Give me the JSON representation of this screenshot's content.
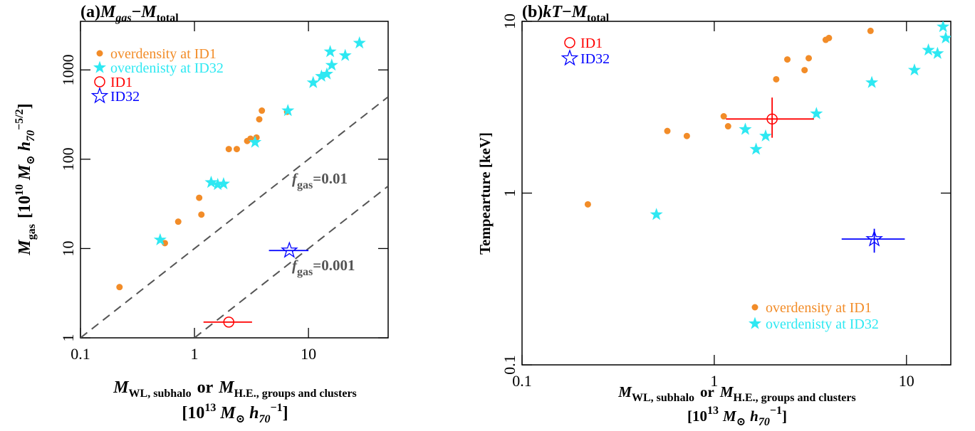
{
  "chart_data": [
    {
      "type": "scatter",
      "log_x": true,
      "log_y": true,
      "title": [
        "(a)",
        "M",
        "gas",
        "−",
        "M",
        "total"
      ],
      "xlabel": [
        "M",
        "WL, subhalo",
        "or",
        "M",
        "H.E., groups and clusters"
      ],
      "xlabel_units": [
        "[10",
        "13",
        "M",
        "⊙",
        "h",
        "70",
        "−1",
        "]"
      ],
      "ylabel": [
        "M",
        "gas",
        "[10",
        "10",
        "M",
        "⊙",
        "h",
        "70",
        "−5/2",
        "]"
      ],
      "xlim": [
        0.1,
        50
      ],
      "ylim": [
        1,
        3500
      ],
      "xticks": [
        0.1,
        1,
        10
      ],
      "yticks": [
        1,
        10,
        100,
        1000
      ],
      "lines": [
        {
          "label": [
            "f",
            "gas",
            "=0.01"
          ],
          "color": "#555555",
          "style": "dashed",
          "x": [
            0.1,
            50
          ],
          "y": [
            1,
            500
          ]
        },
        {
          "label": [
            "f",
            "gas",
            "=0.001"
          ],
          "color": "#555555",
          "style": "dashed",
          "x": [
            1,
            50
          ],
          "y": [
            1,
            50
          ]
        }
      ],
      "series": [
        {
          "name": "overdensity at ID1",
          "color": "#f28c28",
          "marker": "dot",
          "legend": "upper left",
          "x": [
            0.22,
            0.55,
            0.72,
            1.1,
            1.15,
            2.0,
            2.35,
            2.9,
            3.1,
            3.5,
            3.7,
            3.9,
            6.5
          ],
          "y": [
            3.7,
            11.5,
            20,
            37,
            24,
            130,
            130,
            160,
            170,
            175,
            280,
            350,
            340
          ]
        },
        {
          "name": "overdenisty at ID32",
          "color": "#2ee8f2",
          "marker": "star",
          "legend": "upper left",
          "x": [
            0.5,
            1.4,
            1.6,
            1.8,
            3.4,
            6.6,
            11,
            13,
            14.5,
            15.5,
            16,
            21,
            28
          ],
          "y": [
            12.5,
            55,
            52,
            53,
            155,
            350,
            720,
            850,
            900,
            1600,
            1130,
            1450,
            2000
          ]
        },
        {
          "name": "ID1",
          "color": "#ff0000",
          "marker": "open-circle",
          "legend": "upper left",
          "x": [
            2.0
          ],
          "y": [
            1.5
          ],
          "x_lo": [
            1.2
          ],
          "x_hi": [
            3.2
          ]
        },
        {
          "name": "ID32",
          "color": "#0000ff",
          "marker": "open-star",
          "legend": "upper left",
          "x": [
            6.8
          ],
          "y": [
            9.5
          ],
          "x_lo": [
            4.5
          ],
          "x_hi": [
            10
          ]
        }
      ]
    },
    {
      "type": "scatter",
      "log_x": true,
      "log_y": true,
      "title": [
        "(b)",
        "kT",
        "−",
        "M",
        "total"
      ],
      "xlabel": [
        "M",
        "WL, subhalo",
        "or",
        "M",
        "H.E., groups and clusters"
      ],
      "xlabel_units": [
        "[10",
        "13",
        "M",
        "⊙",
        "h",
        "70",
        "−1",
        "]"
      ],
      "ylabel": [
        "Tempearture [keV]"
      ],
      "xlim": [
        0.1,
        17
      ],
      "ylim": [
        0.1,
        10
      ],
      "xticks": [
        0.1,
        1,
        10
      ],
      "yticks": [
        0.1,
        1,
        10
      ],
      "lines": [],
      "series": [
        {
          "name": "overdensity at ID1",
          "color": "#f28c28",
          "marker": "dot",
          "legend": "lower right",
          "x": [
            0.22,
            0.57,
            0.72,
            1.12,
            1.18,
            2.1,
            2.4,
            2.95,
            3.1,
            3.8,
            3.95,
            6.5
          ],
          "y": [
            0.86,
            2.3,
            2.15,
            2.8,
            2.45,
            4.6,
            6.0,
            5.2,
            6.1,
            7.8,
            8.0,
            8.8
          ]
        },
        {
          "name": "overdenisty at ID32",
          "color": "#2ee8f2",
          "marker": "star",
          "legend": "lower right",
          "x": [
            0.5,
            1.45,
            1.65,
            1.85,
            3.4,
            6.6,
            11,
            13,
            14.5,
            15.5,
            16
          ],
          "y": [
            0.75,
            2.35,
            1.8,
            2.15,
            2.9,
            4.4,
            5.2,
            6.8,
            6.5,
            9.3,
            8.0
          ]
        },
        {
          "name": "ID1",
          "color": "#ff0000",
          "marker": "open-circle",
          "legend": "upper left",
          "x": [
            2.0
          ],
          "y": [
            2.7
          ],
          "x_lo": [
            1.15
          ],
          "x_hi": [
            3.3
          ],
          "y_lo": [
            2.1
          ],
          "y_hi": [
            3.6
          ]
        },
        {
          "name": "ID32",
          "color": "#0000ff",
          "marker": "open-star",
          "legend": "upper left",
          "x": [
            6.8
          ],
          "y": [
            0.54
          ],
          "x_lo": [
            4.6
          ],
          "x_hi": [
            9.8
          ],
          "y_lo": [
            0.45
          ],
          "y_hi": [
            0.62
          ]
        }
      ]
    }
  ]
}
